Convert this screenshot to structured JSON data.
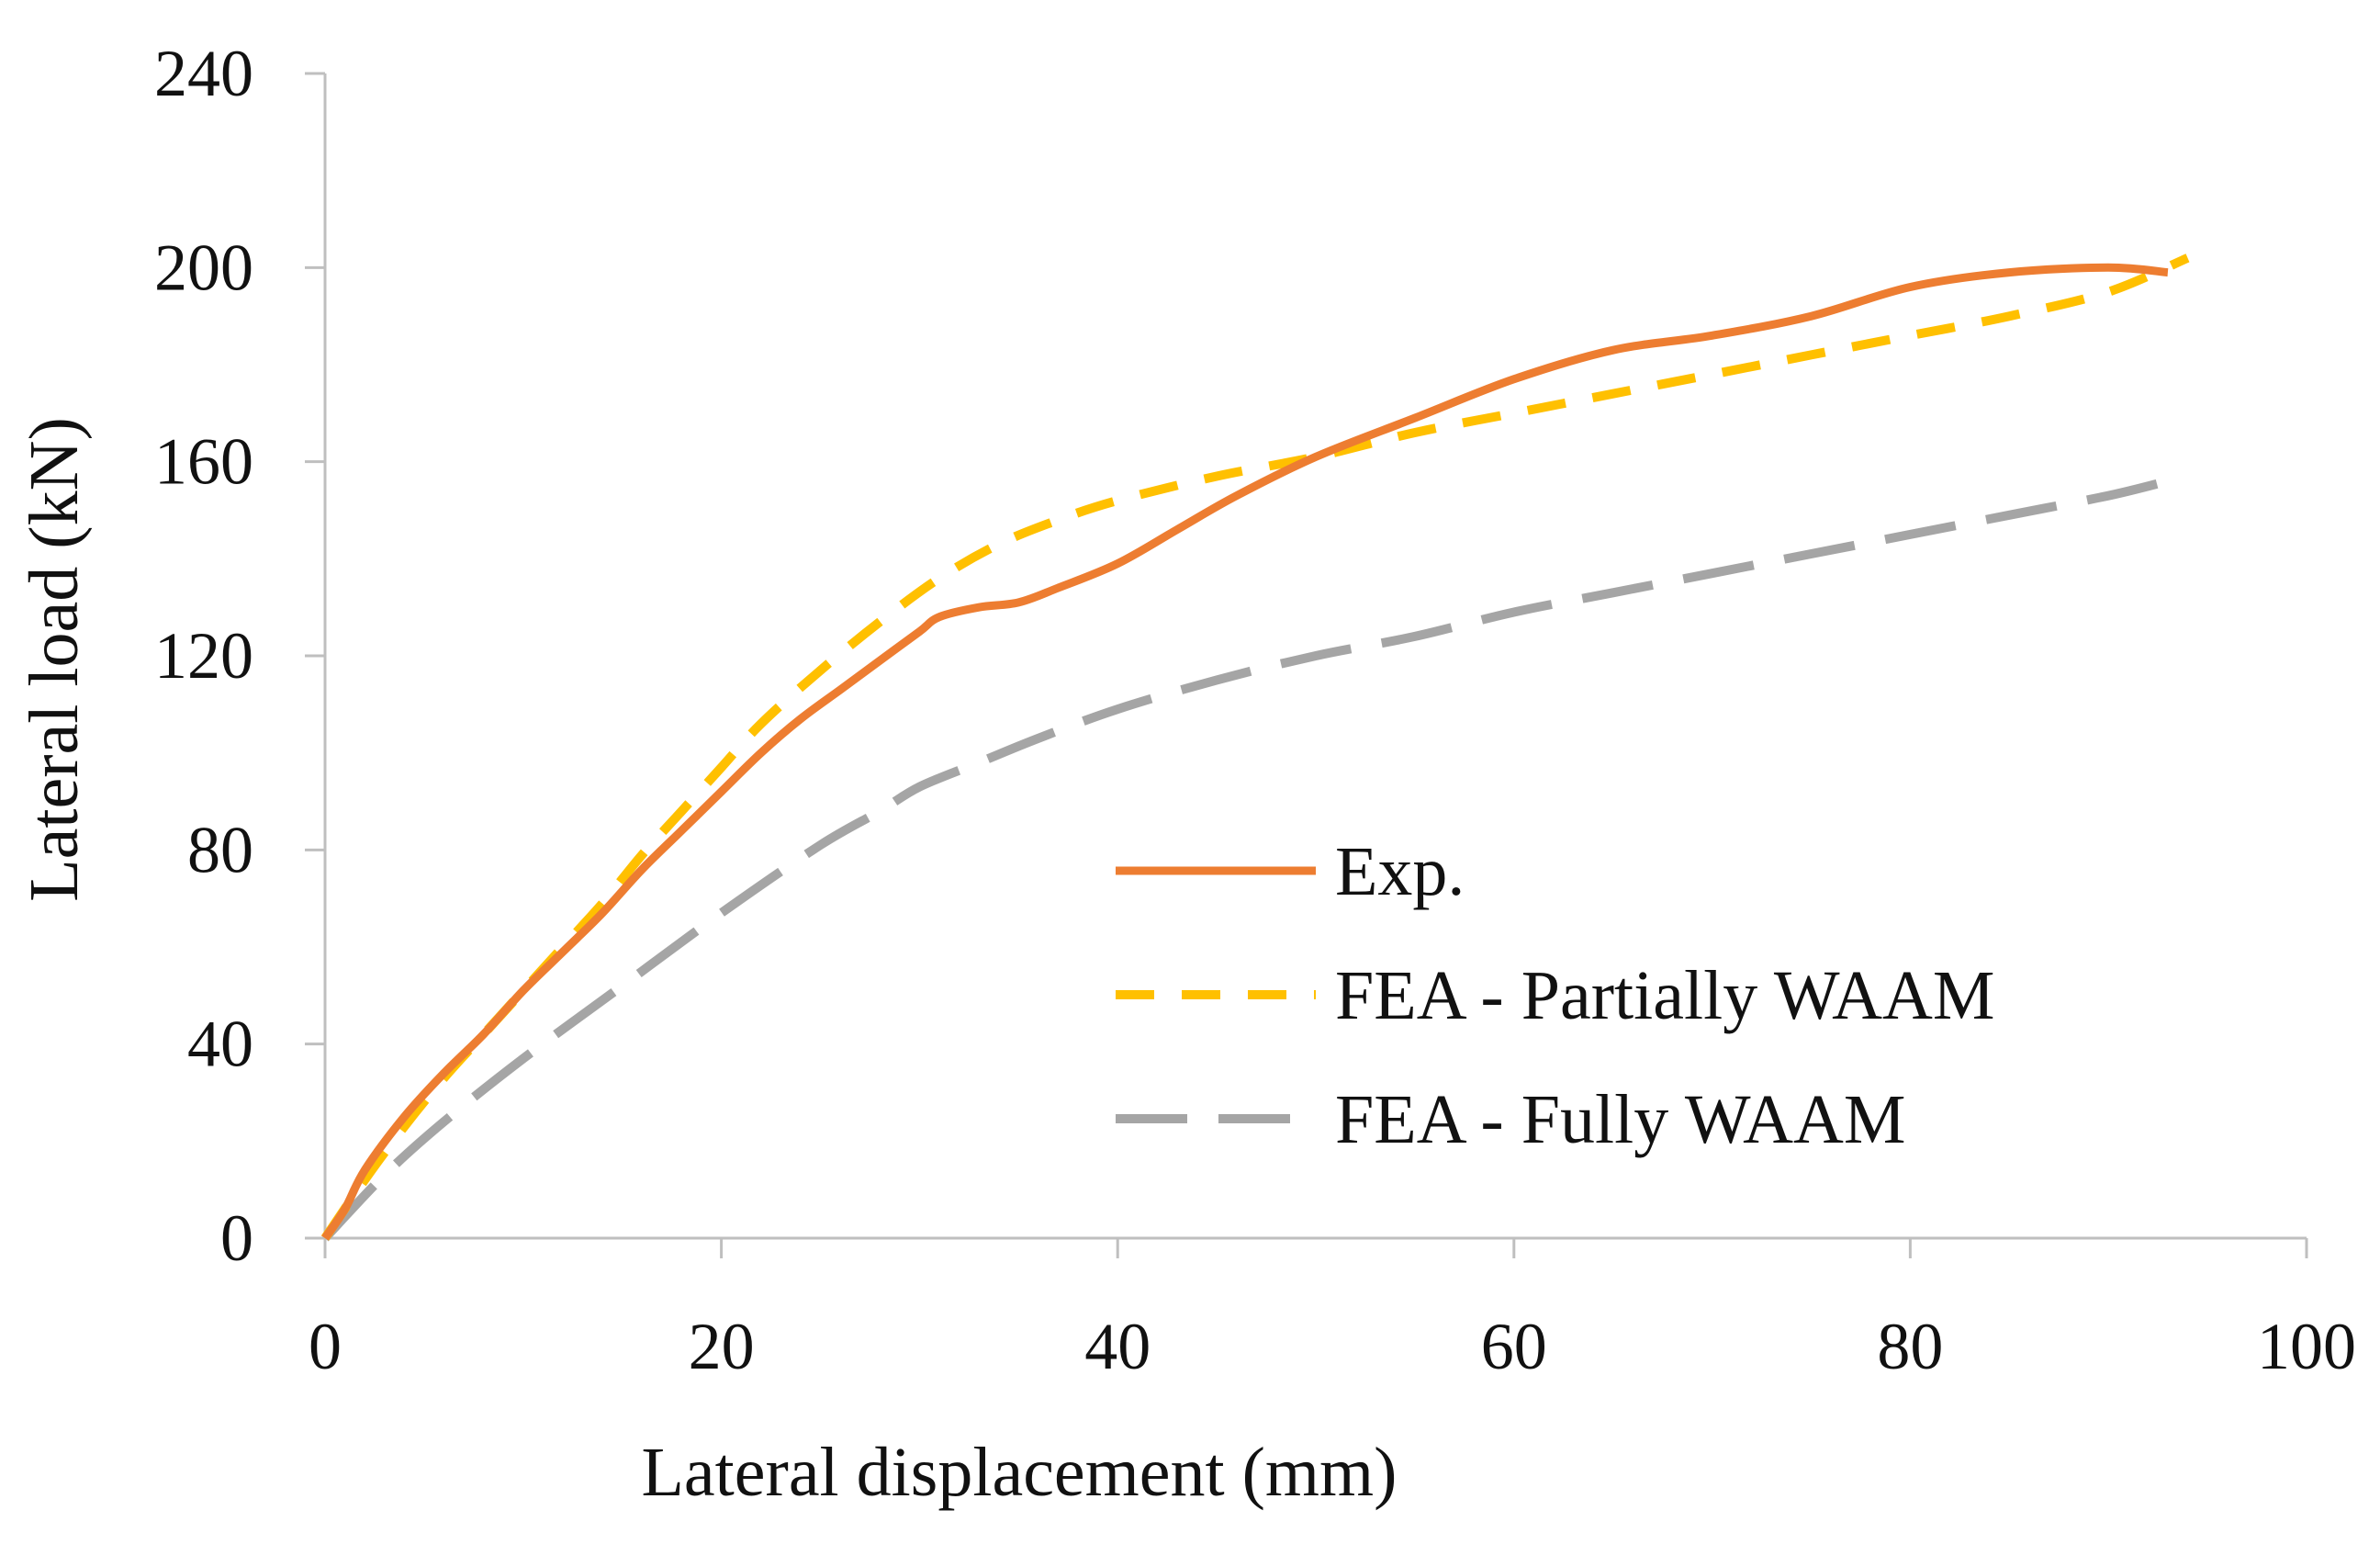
{
  "chart_data": {
    "type": "line",
    "title": "",
    "xlabel": "Lateral displacement (mm)",
    "ylabel": "Lateral load (kN)",
    "xlim": [
      0,
      100
    ],
    "ylim": [
      0,
      240
    ],
    "xticks": [
      0,
      20,
      40,
      60,
      80,
      100
    ],
    "yticks": [
      0,
      40,
      80,
      120,
      160,
      200,
      240
    ],
    "grid": false,
    "legend_position": "center-right",
    "series": [
      {
        "name": "Exp.",
        "color": "#ED7D31",
        "style": "solid",
        "points": [
          [
            0,
            0
          ],
          [
            1,
            6
          ],
          [
            2,
            14
          ],
          [
            4,
            25
          ],
          [
            6,
            34
          ],
          [
            8,
            42
          ],
          [
            10,
            51
          ],
          [
            12,
            59
          ],
          [
            14,
            67
          ],
          [
            16,
            76
          ],
          [
            18,
            84
          ],
          [
            20,
            92
          ],
          [
            22,
            100
          ],
          [
            24,
            107
          ],
          [
            26,
            113
          ],
          [
            28,
            119
          ],
          [
            30,
            125
          ],
          [
            31,
            128
          ],
          [
            33,
            130
          ],
          [
            35,
            131
          ],
          [
            37,
            134
          ],
          [
            40,
            139
          ],
          [
            43,
            146
          ],
          [
            46,
            153
          ],
          [
            50,
            161
          ],
          [
            55,
            169
          ],
          [
            60,
            177
          ],
          [
            65,
            183
          ],
          [
            70,
            186
          ],
          [
            75,
            190
          ],
          [
            80,
            196
          ],
          [
            85,
            199
          ],
          [
            90,
            200
          ],
          [
            93,
            199
          ]
        ]
      },
      {
        "name": "FEA - Partially WAAM",
        "color": "#FFC000",
        "style": "short-dash",
        "points": [
          [
            0,
            0
          ],
          [
            2,
            12
          ],
          [
            4,
            23
          ],
          [
            6,
            33
          ],
          [
            8,
            42
          ],
          [
            10,
            51
          ],
          [
            12,
            60
          ],
          [
            14,
            69
          ],
          [
            16,
            79
          ],
          [
            18,
            88
          ],
          [
            20,
            97
          ],
          [
            22,
            106
          ],
          [
            25,
            117
          ],
          [
            28,
            127
          ],
          [
            31,
            136
          ],
          [
            34,
            143
          ],
          [
            37,
            148
          ],
          [
            40,
            152
          ],
          [
            45,
            157
          ],
          [
            50,
            161
          ],
          [
            55,
            166
          ],
          [
            60,
            170
          ],
          [
            65,
            174
          ],
          [
            70,
            178
          ],
          [
            75,
            182
          ],
          [
            80,
            186
          ],
          [
            85,
            190
          ],
          [
            90,
            195
          ],
          [
            94,
            202
          ]
        ]
      },
      {
        "name": "FEA - Fully WAAM",
        "color": "#A5A5A5",
        "style": "long-dash",
        "points": [
          [
            0,
            0
          ],
          [
            3,
            13
          ],
          [
            6,
            24
          ],
          [
            10,
            37
          ],
          [
            15,
            52
          ],
          [
            20,
            67
          ],
          [
            25,
            81
          ],
          [
            28,
            88
          ],
          [
            30,
            93
          ],
          [
            33,
            98
          ],
          [
            36,
            103
          ],
          [
            40,
            109
          ],
          [
            45,
            115
          ],
          [
            50,
            120
          ],
          [
            55,
            124
          ],
          [
            60,
            129
          ],
          [
            65,
            133
          ],
          [
            70,
            137
          ],
          [
            75,
            141
          ],
          [
            80,
            145
          ],
          [
            85,
            149
          ],
          [
            90,
            153
          ],
          [
            93,
            156
          ]
        ]
      }
    ]
  }
}
